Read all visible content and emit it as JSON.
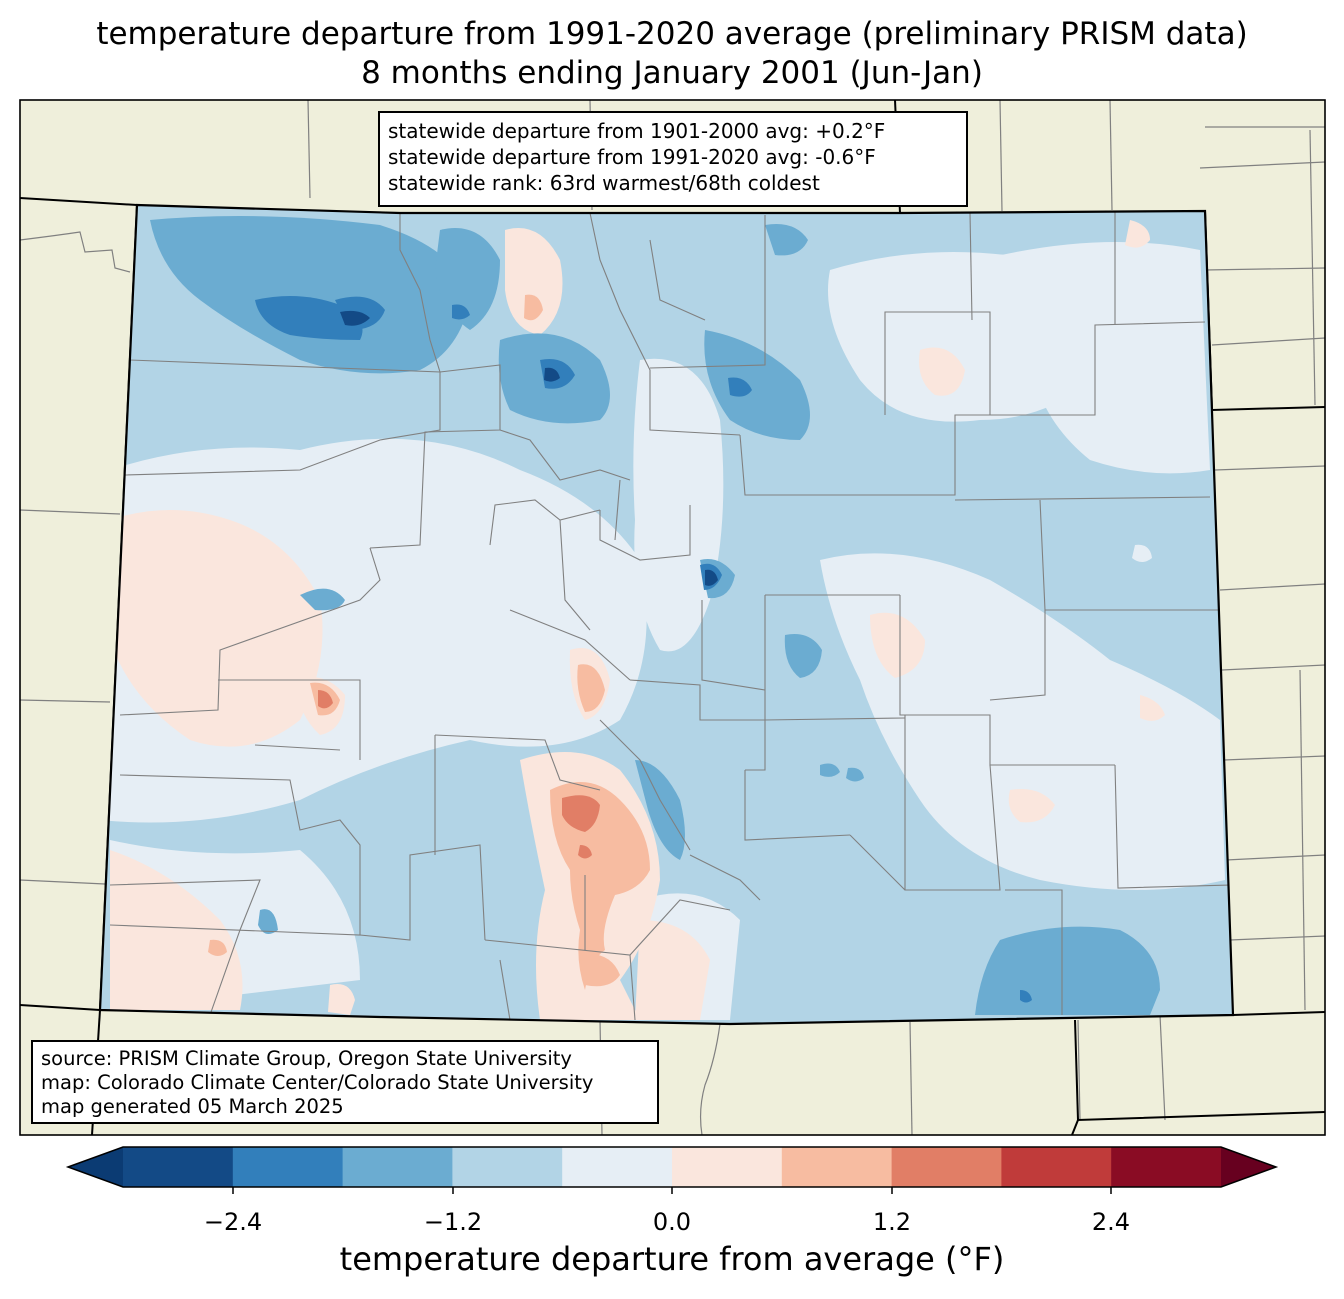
{
  "title_line1": "temperature departure from 1991-2020 average (preliminary PRISM data)",
  "title_line2": "8 months ending January 2001 (Jun-Jan)",
  "statewide": {
    "line1": "statewide departure from 1901-2000 avg: +0.2°F",
    "line2": "statewide departure from 1991-2020 avg: -0.6°F",
    "line3": "statewide rank: 63rd warmest/68th coldest"
  },
  "source": {
    "line1": "source: PRISM Climate Group, Oregon State University",
    "line2": "map: Colorado Climate Center/Colorado State University",
    "line3": "map generated 05 March 2025"
  },
  "colorbar": {
    "label": "temperature departure from average (°F)",
    "ticks": [
      "−2.4",
      "−1.2",
      "0.0",
      "1.2",
      "2.4"
    ],
    "colors": [
      "#0b3b73",
      "#134a86",
      "#327fbb",
      "#6bacd1",
      "#b2d4e6",
      "#e6eef5",
      "#fae6dd",
      "#f7bca1",
      "#e17e66",
      "#c03b3a",
      "#8a0c24",
      "#67001f"
    ]
  },
  "colors": {
    "background_land": "#efefdb",
    "departure_zero_band": "#e6eef5",
    "departure_-0.6_band": "#b2d4e6",
    "departure_-1.2_band": "#6bacd1",
    "departure_-1.8_band": "#327fbb",
    "departure_-2.4_band": "#134a86",
    "departure_0.6_band": "#fae6dd",
    "departure_1.2_band": "#f7bca1",
    "departure_1.8_band": "#e17e66",
    "county_line": "#808080",
    "state_line": "#000000"
  }
}
